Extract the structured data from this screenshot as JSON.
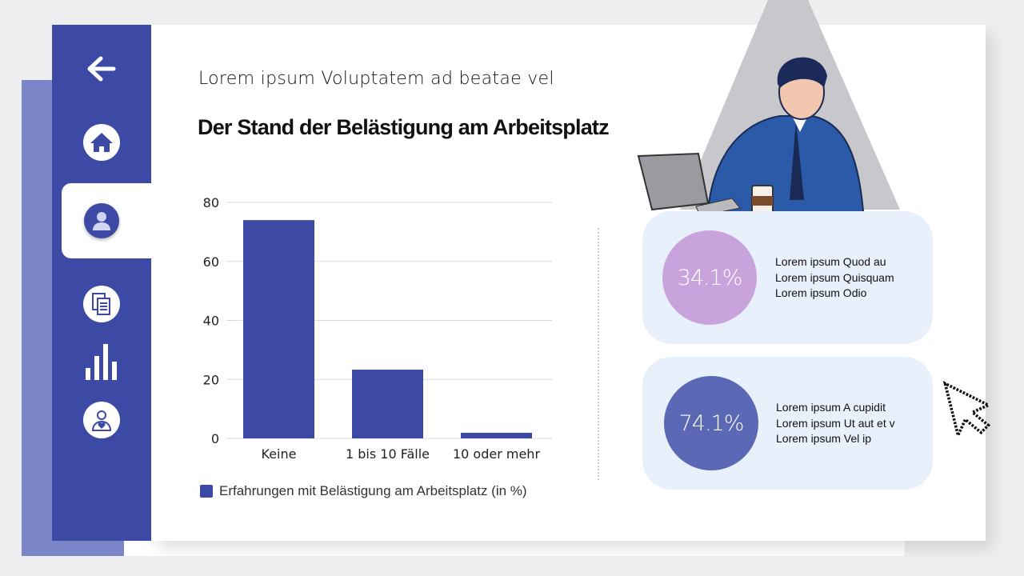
{
  "header": {
    "subtitle": "Lorem ipsum Voluptatem ad beatae vel",
    "title": "Der Stand der Belästigung am Arbeitsplatz"
  },
  "sidebar": {
    "items": [
      {
        "icon": "arrow-left-icon"
      },
      {
        "icon": "home-icon"
      },
      {
        "icon": "user-icon",
        "active": true
      },
      {
        "icon": "documents-icon"
      },
      {
        "icon": "bar-chart-icon"
      },
      {
        "icon": "user-heart-icon"
      }
    ]
  },
  "chart_data": {
    "type": "bar",
    "categories": [
      "Keine",
      "1 bis 10 Fälle",
      "10 oder mehr"
    ],
    "series": [
      {
        "name": "Erfahrungen mit Belästigung am Arbeitsplatz (in %)",
        "values": [
          74,
          23.3,
          1.9
        ]
      }
    ],
    "ylim": [
      0,
      80
    ],
    "yticks": [
      "0",
      "20",
      "40",
      "60",
      "80"
    ],
    "grid": true,
    "legend": "bottom-left",
    "color": "#3c4aa6"
  },
  "stats": [
    {
      "value": "34.1%",
      "lines": [
        "Lorem ipsum Quod au",
        "Lorem ipsum Quisquam",
        "Lorem ipsum Odio"
      ],
      "color": "#c9a3dc"
    },
    {
      "value": "74.1%",
      "lines": [
        "Lorem ipsum A cupidit",
        "Lorem ipsum Ut aut et v",
        "Lorem ipsum Vel ip"
      ],
      "color": "#5b68b5"
    }
  ],
  "colors": {
    "sidebar": "#3c4aa6",
    "back": "#7b86c8",
    "card_bg": "#e8f0fc"
  }
}
